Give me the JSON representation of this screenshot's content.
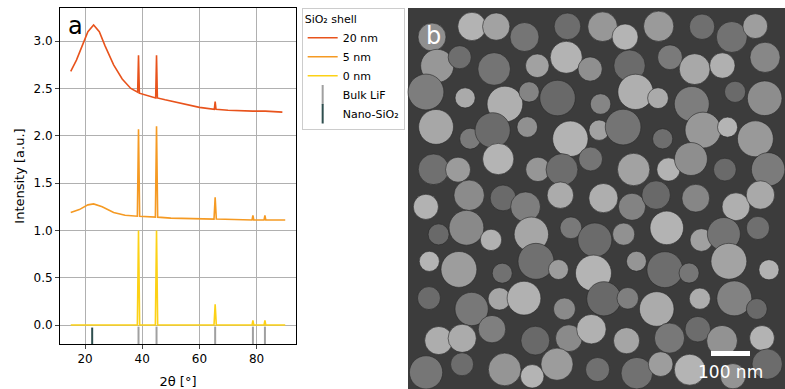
{
  "chart_data": [
    {
      "type": "line",
      "annotations": [
        "a"
      ],
      "x_label": "2θ [°]",
      "y_label": "Intensity [a.u.]",
      "legend_title": "SiO₂ shell",
      "legend": "right",
      "grid": true,
      "xlim": [
        11.25,
        93.75
      ],
      "ylim": [
        -0.2,
        3.35
      ],
      "xticks": [
        20,
        40,
        60,
        80
      ],
      "yticks": [
        {
          "value": 0,
          "label": "0.0"
        },
        {
          "value": 0.5,
          "label": "0.5"
        },
        {
          "value": 1,
          "label": "1.0"
        },
        {
          "value": 1.5,
          "label": "1.5"
        },
        {
          "value": 2,
          "label": "2.0"
        },
        {
          "value": 2.5,
          "label": "2.5"
        },
        {
          "value": 3,
          "label": "3.0"
        }
      ],
      "series": [
        {
          "name": "20 nm",
          "color": "#e8531c",
          "x": [
            15,
            17,
            19,
            21,
            23,
            25,
            27,
            30,
            33,
            36,
            38.4,
            38.7,
            39,
            42,
            44.7,
            45,
            45.3,
            48,
            55,
            60,
            65.2,
            65.5,
            65.8,
            70,
            78.7,
            83,
            89
          ],
          "values": [
            2.68,
            2.8,
            2.95,
            3.1,
            3.17,
            3.1,
            2.95,
            2.75,
            2.6,
            2.5,
            2.46,
            2.85,
            2.45,
            2.42,
            2.4,
            2.85,
            2.4,
            2.38,
            2.33,
            2.3,
            2.28,
            2.36,
            2.28,
            2.27,
            2.26,
            2.26,
            2.25
          ]
        },
        {
          "name": "5 nm",
          "color": "#f59a23",
          "x": [
            15,
            18,
            21,
            23,
            26,
            30,
            34,
            38.3,
            38.7,
            39.1,
            44.6,
            45,
            45.4,
            50,
            65.1,
            65.5,
            65.9,
            78.4,
            78.7,
            79,
            82.6,
            82.9,
            83.2,
            90
          ],
          "values": [
            1.19,
            1.22,
            1.27,
            1.28,
            1.25,
            1.19,
            1.16,
            1.15,
            2.07,
            1.15,
            1.14,
            2.1,
            1.14,
            1.13,
            1.12,
            1.35,
            1.12,
            1.11,
            1.16,
            1.11,
            1.11,
            1.16,
            1.11,
            1.11
          ]
        },
        {
          "name": "0 nm",
          "color": "#fcd116",
          "x": [
            15,
            38.3,
            38.7,
            39.1,
            44.6,
            45,
            45.4,
            65.1,
            65.5,
            65.9,
            78.4,
            78.7,
            79,
            82.6,
            82.9,
            83.2,
            90
          ],
          "values": [
            0,
            0,
            1,
            0,
            0,
            1,
            0,
            0,
            0.22,
            0,
            0,
            0.05,
            0,
            0,
            0.05,
            0,
            0
          ]
        },
        {
          "name": "Bulk LiF",
          "color": "#a0a0a0",
          "type": "scatter",
          "marker": "line-ns",
          "x": [
            38.7,
            45,
            65.5,
            78.7,
            82.9
          ],
          "values": [
            -0.12,
            -0.12,
            -0.12,
            -0.12,
            -0.12
          ]
        },
        {
          "name": "Nano-SiO₂",
          "color": "#2f4f4f",
          "type": "scatter",
          "marker": "line-ns",
          "x": [
            22.5
          ],
          "values": [
            -0.13
          ]
        }
      ]
    },
    {
      "type": "image",
      "annotations": [
        "b",
        "100 nm"
      ]
    }
  ]
}
